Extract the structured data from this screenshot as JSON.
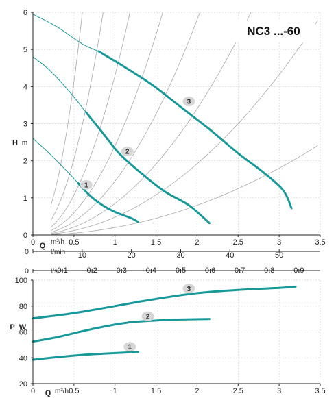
{
  "colors": {
    "curve": "#17999a",
    "guide": "#a8a8a8",
    "grid": "#d4d4d4",
    "badge": "#d6d6d6",
    "axis": "#222222"
  },
  "chart_data": [
    {
      "type": "line",
      "title": "NC3 ...-60",
      "ylabel_main": "H",
      "ylabel_unit": "m",
      "xlabel_main": "Q",
      "xlabel_unit": "m³/h",
      "xlim": [
        0,
        3.5
      ],
      "ylim": [
        0,
        6
      ],
      "x_ticks": [
        "0",
        "0.5",
        "1",
        "1.5",
        "2",
        "2.5",
        "3",
        "3.5"
      ],
      "y_ticks": [
        "0",
        "1",
        "2",
        "3",
        "4",
        "5",
        "6"
      ],
      "secondary_axes": [
        {
          "unit": "l/min",
          "zero_label": "0",
          "ticks": [
            {
              "value": 10,
              "label": "10"
            },
            {
              "value": 20,
              "label": "20"
            },
            {
              "value": 30,
              "label": "30"
            },
            {
              "value": 40,
              "label": "40"
            },
            {
              "value": 50,
              "label": "50"
            }
          ],
          "per_m3h": 16.6667
        },
        {
          "unit": "l/s",
          "zero_label": "0",
          "ticks": [
            {
              "value": 0.1,
              "label": "0.1"
            },
            {
              "value": 0.2,
              "label": "0.2"
            },
            {
              "value": 0.3,
              "label": "0.3"
            },
            {
              "value": 0.4,
              "label": "0.4"
            },
            {
              "value": 0.5,
              "label": "0.5"
            },
            {
              "value": 0.6,
              "label": "0.6"
            },
            {
              "value": 0.7,
              "label": "0.7"
            },
            {
              "value": 0.8,
              "label": "0.8"
            },
            {
              "value": 0.9,
              "label": "0.9"
            }
          ],
          "per_m3h": 0.27778
        }
      ],
      "series": [
        {
          "name": "1",
          "label_at": [
            0.65,
            1.35
          ],
          "thin": [
            [
              0,
              2.6
            ],
            [
              0.2,
              2.2
            ],
            [
              0.4,
              1.75
            ],
            [
              0.55,
              1.4
            ]
          ],
          "thick": [
            [
              0.55,
              1.4
            ],
            [
              0.7,
              1.05
            ],
            [
              0.85,
              0.8
            ],
            [
              1.0,
              0.62
            ],
            [
              1.2,
              0.45
            ],
            [
              1.28,
              0.35
            ]
          ]
        },
        {
          "name": "2",
          "label_at": [
            1.15,
            2.25
          ],
          "thin": [
            [
              0,
              4.8
            ],
            [
              0.2,
              4.45
            ],
            [
              0.45,
              3.85
            ],
            [
              0.65,
              3.3
            ]
          ],
          "thick": [
            [
              0.65,
              3.3
            ],
            [
              0.85,
              2.75
            ],
            [
              1.05,
              2.2
            ],
            [
              1.3,
              1.7
            ],
            [
              1.6,
              1.18
            ],
            [
              1.9,
              0.8
            ],
            [
              2.15,
              0.32
            ]
          ]
        },
        {
          "name": "3",
          "label_at": [
            1.9,
            3.6
          ],
          "thin": [
            [
              0,
              5.95
            ],
            [
              0.3,
              5.6
            ],
            [
              0.6,
              5.15
            ],
            [
              0.8,
              4.95
            ]
          ],
          "thick": [
            [
              0.8,
              4.95
            ],
            [
              1.1,
              4.55
            ],
            [
              1.45,
              4.05
            ],
            [
              1.8,
              3.45
            ],
            [
              2.15,
              2.85
            ],
            [
              2.5,
              2.2
            ],
            [
              2.8,
              1.7
            ],
            [
              3.05,
              1.2
            ],
            [
              3.15,
              0.72
            ]
          ]
        }
      ],
      "system_curves_k": [
        16.5,
        8.2,
        4.3,
        2.4,
        1.45,
        0.85,
        0.48,
        0.2
      ]
    },
    {
      "type": "line",
      "ylabel_main": "P",
      "ylabel_unit": "W",
      "xlabel_main": "Q",
      "xlabel_unit": "m³/h",
      "xlim": [
        0,
        3.5
      ],
      "ylim": [
        20,
        100
      ],
      "x_ticks": [
        "0",
        "0.5",
        "1",
        "1.5",
        "2",
        "2.5",
        "3",
        "3.5"
      ],
      "y_ticks": [
        "20",
        "40",
        "60",
        "80",
        "100"
      ],
      "series": [
        {
          "name": "1",
          "label_at": [
            1.18,
            48.5
          ],
          "points": [
            [
              0,
              38.5
            ],
            [
              0.3,
              40.5
            ],
            [
              0.6,
              42.2
            ],
            [
              0.9,
              43.3
            ],
            [
              1.2,
              44.2
            ],
            [
              1.28,
              44.4
            ]
          ]
        },
        {
          "name": "2",
          "label_at": [
            1.4,
            72
          ],
          "points": [
            [
              0,
              52.5
            ],
            [
              0.3,
              56
            ],
            [
              0.6,
              60.5
            ],
            [
              0.9,
              64.5
            ],
            [
              1.2,
              67.5
            ],
            [
              1.5,
              68.8
            ],
            [
              1.8,
              69.6
            ],
            [
              2.15,
              70
            ]
          ]
        },
        {
          "name": "3",
          "label_at": [
            1.9,
            93.5
          ],
          "points": [
            [
              0,
              70.5
            ],
            [
              0.5,
              74.5
            ],
            [
              1.0,
              80
            ],
            [
              1.5,
              85.5
            ],
            [
              2.0,
              90
            ],
            [
              2.5,
              92.5
            ],
            [
              3.0,
              94
            ],
            [
              3.2,
              95
            ]
          ]
        }
      ]
    }
  ]
}
